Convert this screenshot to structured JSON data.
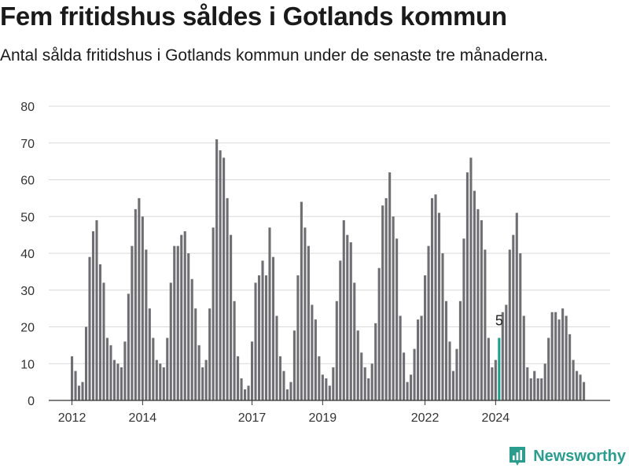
{
  "title": "Fem fritidshus såldes i Gotlands kommun",
  "subtitle": "Antal sålda fritidshus i Gotlands kommun under de senaste tre månaderna.",
  "brand": "Newsworthy",
  "colors": {
    "bar": "#6f6e72",
    "highlight": "#1f9e8e",
    "grid": "#d9d9d9",
    "axis": "#333333",
    "brand": "#2a9d8f"
  },
  "chart_data": {
    "type": "bar",
    "ylim": [
      0,
      80
    ],
    "yticks": [
      0,
      10,
      20,
      30,
      40,
      50,
      60,
      70,
      80
    ],
    "xticks": [
      "2012",
      "2014",
      "2017",
      "2019",
      "2022",
      "2024"
    ],
    "xtick_index": [
      0,
      20,
      51,
      71,
      100,
      120
    ],
    "grid": true,
    "annotation": {
      "index": 121,
      "text": "5"
    },
    "values": [
      12,
      8,
      4,
      5,
      20,
      39,
      46,
      49,
      37,
      32,
      17,
      15,
      11,
      10,
      9,
      16,
      29,
      42,
      52,
      55,
      50,
      41,
      25,
      17,
      11,
      10,
      9,
      17,
      32,
      42,
      42,
      45,
      46,
      40,
      33,
      25,
      15,
      9,
      11,
      25,
      47,
      71,
      68,
      66,
      55,
      45,
      27,
      12,
      6,
      3,
      4,
      16,
      32,
      34,
      38,
      34,
      47,
      39,
      23,
      12,
      8,
      3,
      5,
      19,
      34,
      54,
      47,
      42,
      26,
      22,
      12,
      7,
      6,
      4,
      9,
      27,
      38,
      49,
      45,
      43,
      32,
      19,
      13,
      9,
      6,
      10,
      21,
      36,
      53,
      55,
      62,
      50,
      44,
      23,
      13,
      5,
      7,
      14,
      22,
      23,
      34,
      42,
      55,
      56,
      51,
      40,
      27,
      16,
      8,
      14,
      27,
      44,
      62,
      66,
      57,
      52,
      49,
      41,
      17,
      9,
      11,
      17,
      24,
      26,
      41,
      45,
      51,
      40,
      23,
      9,
      6,
      8,
      6,
      6,
      10,
      17,
      24,
      24,
      22,
      25,
      23,
      18,
      11,
      8,
      7,
      5
    ]
  }
}
